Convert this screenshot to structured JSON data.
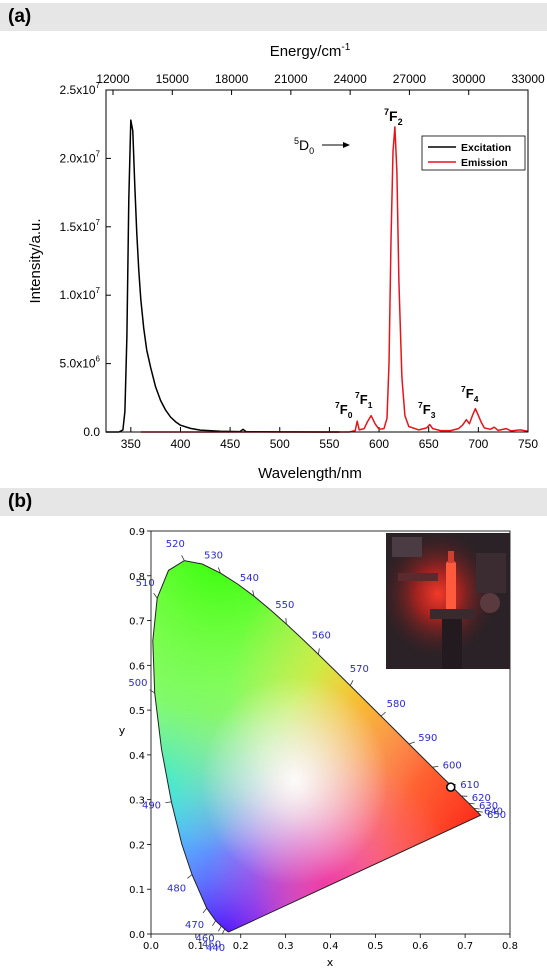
{
  "panel_a": {
    "label": "(a)"
  },
  "panel_b": {
    "label": "(b)"
  },
  "chart_data": [
    {
      "type": "line",
      "xlabel": "Wavelength/nm",
      "x2label": "Energy/cm",
      "x2label_sup": "-1",
      "ylabel": "Intensity/a.u.",
      "xlim": [
        325,
        750
      ],
      "ylim": [
        0,
        25000000
      ],
      "x_ticks": [
        350,
        400,
        450,
        500,
        550,
        600,
        650,
        700,
        750
      ],
      "x2_ticks": [
        "12000",
        "15000",
        "18000",
        "21000",
        "24000",
        "27000",
        "30000",
        "33000"
      ],
      "y_ticks": [
        {
          "value": 0,
          "mant": "0.0",
          "exp": ""
        },
        {
          "value": 5000000,
          "mant": "5.0x10",
          "exp": "6"
        },
        {
          "value": 10000000,
          "mant": "1.0x10",
          "exp": "7"
        },
        {
          "value": 15000000,
          "mant": "1.5x10",
          "exp": "7"
        },
        {
          "value": 20000000,
          "mant": "2.0x10",
          "exp": "7"
        },
        {
          "value": 25000000,
          "mant": "2.5x10",
          "exp": "7"
        }
      ],
      "legend_position": "top-right",
      "series": [
        {
          "name": "Excitation",
          "color": "#000000",
          "points": [
            [
              325,
              0
            ],
            [
              338,
              0
            ],
            [
              342,
              150000
            ],
            [
              344,
              1500000
            ],
            [
              346,
              7000000
            ],
            [
              348,
              17000000
            ],
            [
              350,
              22800000
            ],
            [
              352,
              22000000
            ],
            [
              354,
              18000000
            ],
            [
              356,
              14500000
            ],
            [
              358,
              11800000
            ],
            [
              360,
              9700000
            ],
            [
              363,
              7600000
            ],
            [
              366,
              6000000
            ],
            [
              370,
              4700000
            ],
            [
              375,
              3300000
            ],
            [
              380,
              2300000
            ],
            [
              385,
              1600000
            ],
            [
              390,
              1100000
            ],
            [
              395,
              750000
            ],
            [
              400,
              500000
            ],
            [
              410,
              260000
            ],
            [
              420,
              140000
            ],
            [
              440,
              60000
            ],
            [
              460,
              30000
            ],
            [
              463,
              200000
            ],
            [
              466,
              30000
            ],
            [
              480,
              15000
            ],
            [
              500,
              8000
            ],
            [
              540,
              3000
            ],
            [
              560,
              1500
            ]
          ]
        },
        {
          "name": "Emission",
          "color": "#e8141a",
          "points": [
            [
              360,
              0
            ],
            [
              570,
              0
            ],
            [
              576,
              100000
            ],
            [
              578,
              800000
            ],
            [
              580,
              150000
            ],
            [
              585,
              250000
            ],
            [
              588,
              700000
            ],
            [
              592,
              1200000
            ],
            [
              596,
              600000
            ],
            [
              600,
              200000
            ],
            [
              605,
              250000
            ],
            [
              608,
              1000000
            ],
            [
              610,
              5000000
            ],
            [
              612,
              14000000
            ],
            [
              614,
              20500000
            ],
            [
              616,
              22300000
            ],
            [
              618,
              19000000
            ],
            [
              620,
              11000000
            ],
            [
              623,
              4000000
            ],
            [
              626,
              1200000
            ],
            [
              630,
              400000
            ],
            [
              640,
              150000
            ],
            [
              648,
              300000
            ],
            [
              651,
              550000
            ],
            [
              654,
              250000
            ],
            [
              662,
              100000
            ],
            [
              672,
              100000
            ],
            [
              680,
              250000
            ],
            [
              684,
              500000
            ],
            [
              688,
              900000
            ],
            [
              691,
              600000
            ],
            [
              694,
              1200000
            ],
            [
              697,
              1700000
            ],
            [
              700,
              1200000
            ],
            [
              703,
              700000
            ],
            [
              706,
              300000
            ],
            [
              712,
              200000
            ],
            [
              716,
              350000
            ],
            [
              720,
              120000
            ],
            [
              728,
              250000
            ],
            [
              733,
              80000
            ],
            [
              742,
              150000
            ],
            [
              750,
              60000
            ]
          ]
        }
      ],
      "annotations": {
        "arrow_label": {
          "sup": "5",
          "base": "D",
          "sub": "0"
        },
        "peaks": [
          {
            "sup": "7",
            "base": "F",
            "sub": "0"
          },
          {
            "sup": "7",
            "base": "F",
            "sub": "1"
          },
          {
            "sup": "7",
            "base": "F",
            "sub": "2"
          },
          {
            "sup": "7",
            "base": "F",
            "sub": "3"
          },
          {
            "sup": "7",
            "base": "F",
            "sub": "4"
          }
        ]
      }
    },
    {
      "type": "scatter",
      "title": "",
      "xlabel": "x",
      "ylabel": "y",
      "xlim": [
        0,
        0.8
      ],
      "ylim": [
        0,
        0.9
      ],
      "x_ticks": [
        "0.0",
        "0.1",
        "0.2",
        "0.3",
        "0.4",
        "0.5",
        "0.6",
        "0.7",
        "0.8"
      ],
      "y_ticks": [
        "0.0",
        "0.1",
        "0.2",
        "0.3",
        "0.4",
        "0.5",
        "0.6",
        "0.7",
        "0.8",
        "0.9"
      ],
      "spectral_locus": [
        [
          0.1741,
          0.005
        ],
        [
          0.1738,
          0.0049
        ],
        [
          0.1736,
          0.0049
        ],
        [
          0.1733,
          0.0048
        ],
        [
          0.1726,
          0.0048
        ],
        [
          0.1714,
          0.0051
        ],
        [
          0.1689,
          0.0069
        ],
        [
          0.1644,
          0.0109
        ],
        [
          0.1566,
          0.0177
        ],
        [
          0.144,
          0.0297
        ],
        [
          0.1241,
          0.0578
        ],
        [
          0.0913,
          0.1327
        ],
        [
          0.0687,
          0.2007
        ],
        [
          0.0454,
          0.295
        ],
        [
          0.0235,
          0.4127
        ],
        [
          0.0082,
          0.5384
        ],
        [
          0.0039,
          0.6548
        ],
        [
          0.0139,
          0.7502
        ],
        [
          0.0389,
          0.812
        ],
        [
          0.0743,
          0.8338
        ],
        [
          0.1142,
          0.8262
        ],
        [
          0.1547,
          0.8059
        ],
        [
          0.1929,
          0.7816
        ],
        [
          0.2296,
          0.7543
        ],
        [
          0.2658,
          0.7243
        ],
        [
          0.3016,
          0.6923
        ],
        [
          0.3373,
          0.6589
        ],
        [
          0.3731,
          0.6245
        ],
        [
          0.4087,
          0.5896
        ],
        [
          0.4441,
          0.5547
        ],
        [
          0.4788,
          0.5202
        ],
        [
          0.5125,
          0.4866
        ],
        [
          0.5448,
          0.4544
        ],
        [
          0.5752,
          0.4242
        ],
        [
          0.6029,
          0.3965
        ],
        [
          0.627,
          0.3725
        ],
        [
          0.6482,
          0.3514
        ],
        [
          0.6658,
          0.334
        ],
        [
          0.6801,
          0.3197
        ],
        [
          0.6915,
          0.3083
        ],
        [
          0.7006,
          0.2993
        ],
        [
          0.7079,
          0.292
        ],
        [
          0.714,
          0.2859
        ],
        [
          0.719,
          0.2809
        ],
        [
          0.723,
          0.277
        ],
        [
          0.726,
          0.274
        ],
        [
          0.7283,
          0.2717
        ],
        [
          0.73,
          0.27
        ],
        [
          0.7311,
          0.2689
        ],
        [
          0.732,
          0.268
        ],
        [
          0.7327,
          0.2673
        ],
        [
          0.7334,
          0.2666
        ],
        [
          0.734,
          0.266
        ],
        [
          0.7344,
          0.2656
        ],
        [
          0.7346,
          0.2654
        ],
        [
          0.7347,
          0.2653
        ]
      ],
      "wavelength_labels": [
        {
          "nm": "440",
          "x": 0.1644,
          "y": 0.0109
        },
        {
          "nm": "450",
          "x": 0.1566,
          "y": 0.0177
        },
        {
          "nm": "460",
          "x": 0.144,
          "y": 0.0297
        },
        {
          "nm": "470",
          "x": 0.1241,
          "y": 0.0578
        },
        {
          "nm": "480",
          "x": 0.0913,
          "y": 0.1327
        },
        {
          "nm": "490",
          "x": 0.0454,
          "y": 0.295
        },
        {
          "nm": "500",
          "x": 0.0082,
          "y": 0.5384
        },
        {
          "nm": "510",
          "x": 0.0139,
          "y": 0.7502
        },
        {
          "nm": "520",
          "x": 0.0743,
          "y": 0.8338
        },
        {
          "nm": "530",
          "x": 0.1547,
          "y": 0.8059
        },
        {
          "nm": "540",
          "x": 0.2296,
          "y": 0.7543
        },
        {
          "nm": "550",
          "x": 0.3016,
          "y": 0.6923
        },
        {
          "nm": "560",
          "x": 0.3731,
          "y": 0.6245
        },
        {
          "nm": "570",
          "x": 0.4441,
          "y": 0.5547
        },
        {
          "nm": "580",
          "x": 0.5125,
          "y": 0.4866
        },
        {
          "nm": "590",
          "x": 0.5752,
          "y": 0.4242
        },
        {
          "nm": "600",
          "x": 0.627,
          "y": 0.3725
        },
        {
          "nm": "610",
          "x": 0.6658,
          "y": 0.334
        },
        {
          "nm": "620",
          "x": 0.6915,
          "y": 0.3083
        },
        {
          "nm": "630",
          "x": 0.7079,
          "y": 0.292
        },
        {
          "nm": "640",
          "x": 0.719,
          "y": 0.2809
        },
        {
          "nm": "650",
          "x": 0.726,
          "y": 0.274
        }
      ],
      "points": [
        {
          "x": 0.668,
          "y": 0.328,
          "style": "hollow-black-circle"
        }
      ],
      "label_color": "#2b2bd6",
      "inset": "photo-red-glowing-sample"
    }
  ]
}
